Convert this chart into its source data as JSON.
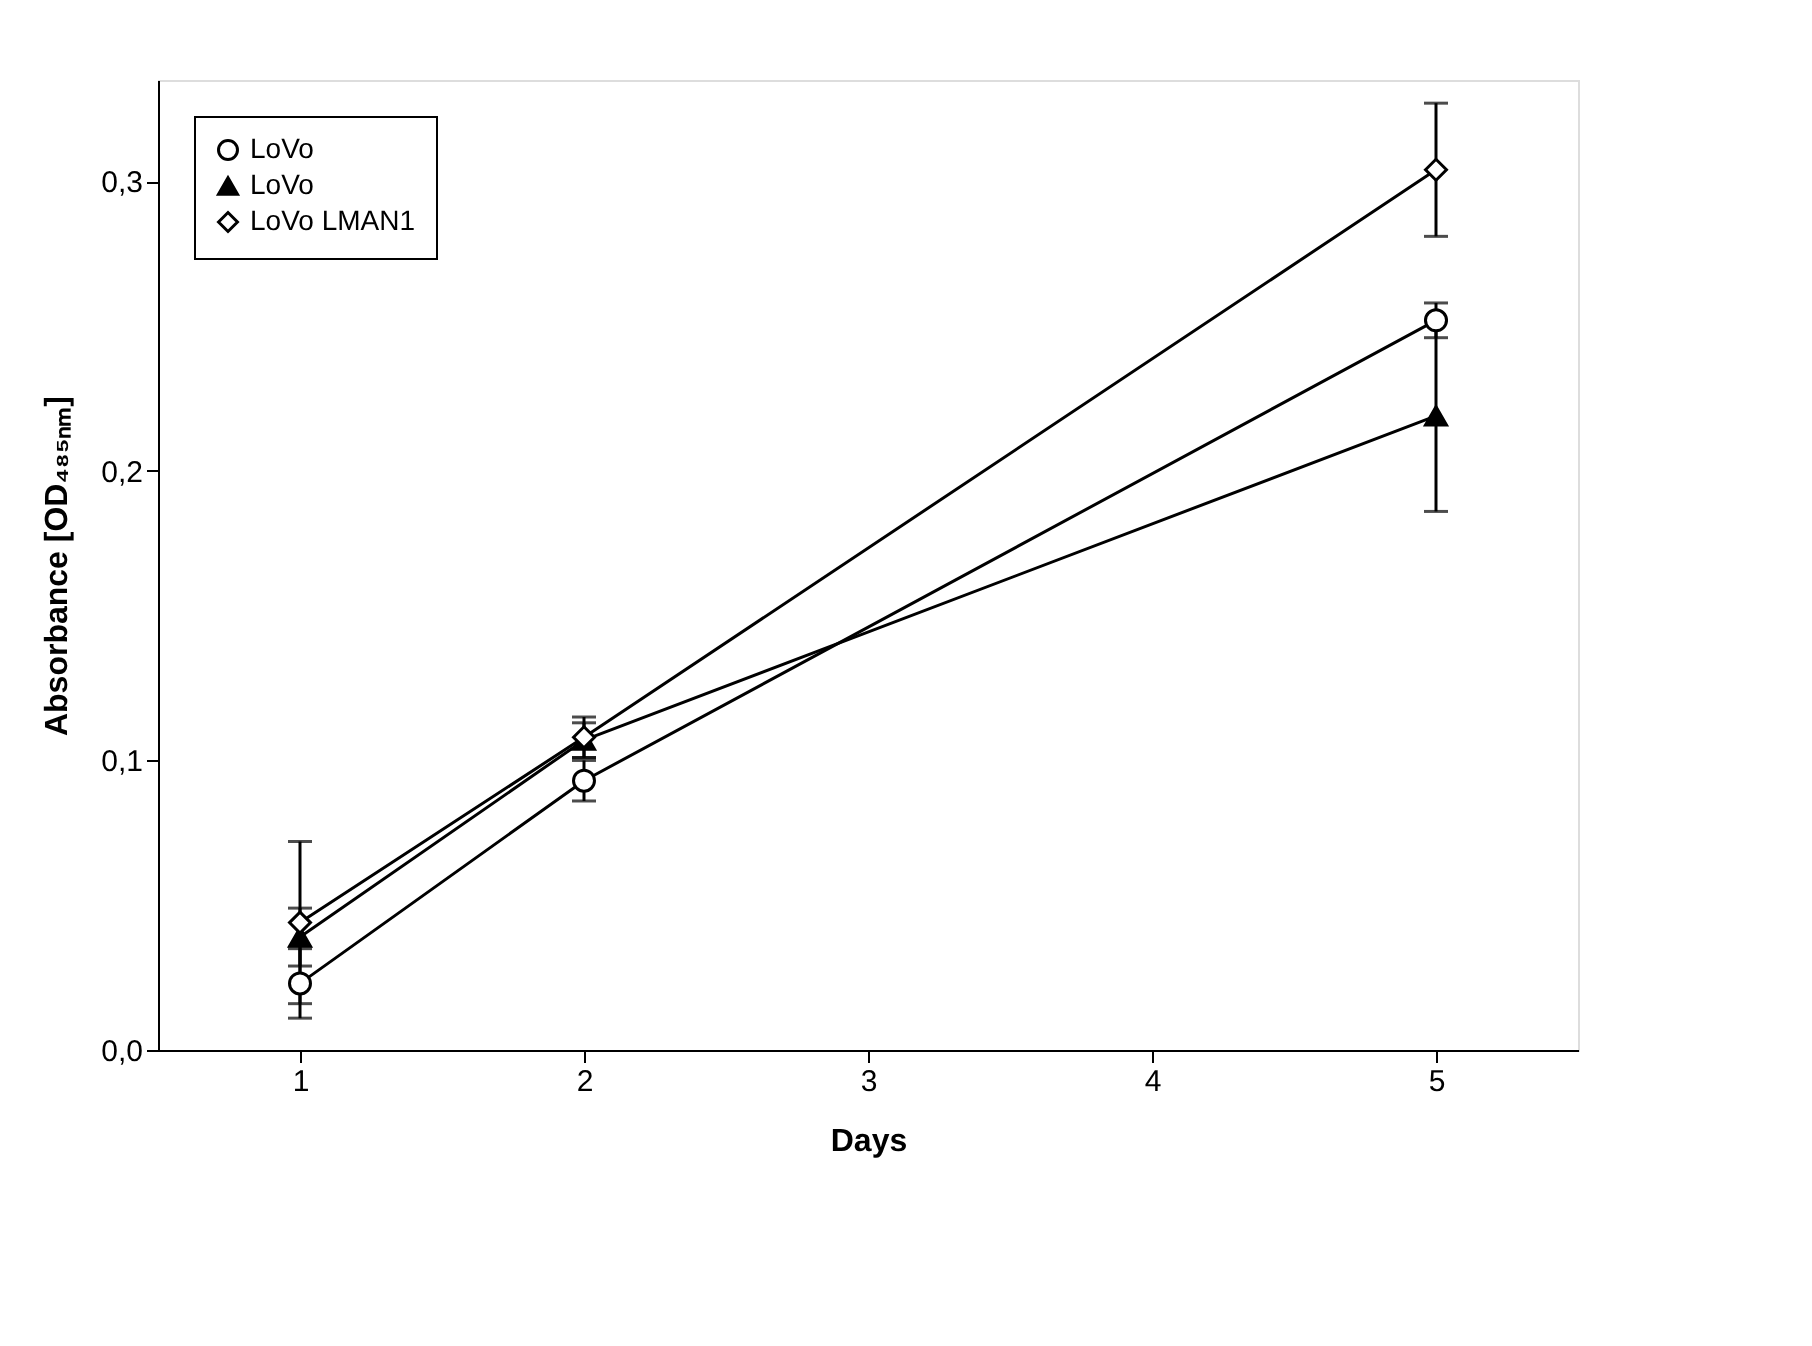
{
  "chart_data": {
    "type": "line",
    "xlabel": "Days",
    "ylabel": "Absorbance [OD₄₈₅ₙₘ]",
    "xlim": [
      0.5,
      5.5
    ],
    "xticks": [
      1,
      2,
      3,
      4,
      5
    ],
    "ylim": [
      0,
      0.335
    ],
    "yticks": [
      {
        "value": 0,
        "label": "0,0"
      },
      {
        "value": 0.1,
        "label": "0,1"
      },
      {
        "value": 0.2,
        "label": "0,2"
      },
      {
        "value": 0.3,
        "label": "0,3"
      }
    ],
    "legend": "top left",
    "grid": false,
    "line_style": "solid",
    "series": [
      {
        "name": "LoVo",
        "color": "#000000",
        "marker": "circle",
        "x": [
          1,
          2,
          5
        ],
        "values": [
          0.023,
          0.093,
          0.252
        ],
        "errors": [
          0.012,
          0.007,
          0.006
        ]
      },
      {
        "name": "LoVo",
        "color": "#000000",
        "marker": "triangle",
        "x": [
          1,
          2,
          5
        ],
        "values": [
          0.039,
          0.107,
          0.219
        ],
        "errors": [
          0.01,
          0.006,
          0.033
        ]
      },
      {
        "name": "LoVo LMAN1",
        "color": "#000000",
        "marker": "diamond",
        "x": [
          1,
          2,
          5
        ],
        "values": [
          0.044,
          0.108,
          0.304
        ],
        "errors": [
          0.028,
          0.007,
          0.023
        ]
      }
    ]
  }
}
